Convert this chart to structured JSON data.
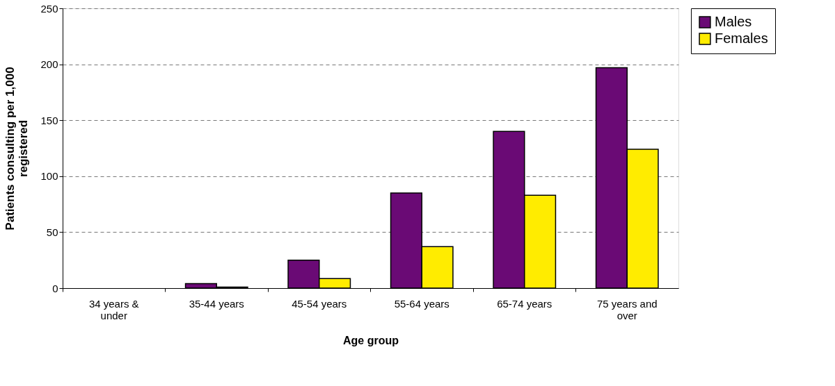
{
  "chart_data": {
    "type": "bar",
    "xlabel": "Age group",
    "ylabel": "Patients consulting per 1,000\nregistered",
    "categories": [
      "34 years &\nunder",
      "35-44 years",
      "45-54 years",
      "55-64 years",
      "65-74 years",
      "75 years and\nover"
    ],
    "series": [
      {
        "name": "Males",
        "color": "#6a0a75",
        "values": [
          null,
          4,
          25,
          85,
          140,
          197
        ]
      },
      {
        "name": "Females",
        "color": "#ffec00",
        "values": [
          null,
          1,
          8.5,
          37,
          83,
          124
        ]
      }
    ],
    "ylim": [
      0,
      250
    ],
    "yticks": [
      0,
      50,
      100,
      150,
      200,
      250
    ],
    "grid": "y",
    "legend": "right"
  }
}
